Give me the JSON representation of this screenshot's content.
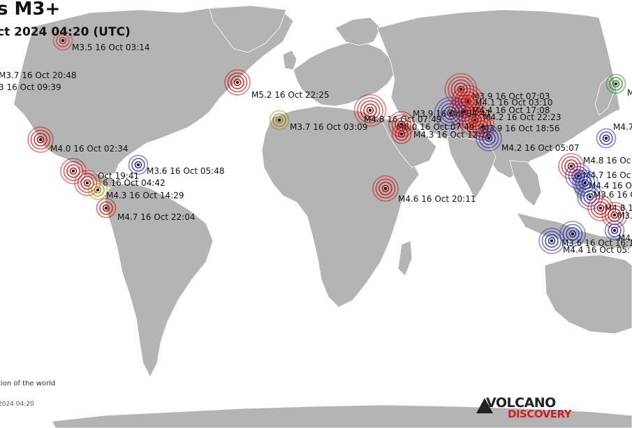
{
  "title": "s M3+",
  "subtitle": "ct 2024 04:20 (UTC)",
  "footer": {
    "note": "tion of the world",
    "time": "2024 04:20"
  },
  "logo": {
    "line1": "VOLCANO",
    "line2": "DISCOVERY"
  },
  "colors": {
    "land": "#b4b4b4",
    "water": "#ffffff",
    "recent": "#cc0000",
    "older": "#2222aa",
    "oldest": "#a08a00",
    "green": "#1a8a1a"
  },
  "quakes": [
    {
      "label": "M3.5 16 Oct 03:14",
      "color": "#cc3333"
    },
    {
      "label": "M3.7 16 Oct 20:48",
      "color": "#cc3333"
    },
    {
      "label": "3 16 Oct 09:39",
      "color": "#cc3333"
    },
    {
      "label": "M5.2 16 Oct 22:25",
      "color": "#cc0000"
    },
    {
      "label": "M3.7 16 Oct 03:09",
      "color": "#a08a00"
    },
    {
      "label": "M4.0 16 Oct 02:34",
      "color": "#cc0000"
    },
    {
      "label": "M3.6 16 Oct 05:48",
      "color": "#2222aa"
    },
    {
      "label": "Oct 19:41",
      "color": "#cc0000"
    },
    {
      "label": "6 16 Oct 04:42",
      "color": "#cc0000"
    },
    {
      "label": "M4.3 16 Oct 14:29",
      "color": "#a08a00"
    },
    {
      "label": "M4.7 16 Oct 22:04",
      "color": "#cc0000"
    },
    {
      "label": "M4.6 16 Oct 20:11",
      "color": "#cc0000"
    },
    {
      "label": "M3.9 16 Oct 07:03",
      "color": "#cc0000"
    },
    {
      "label": "M4.1 16 Oct 03:10",
      "color": "#cc0000"
    },
    {
      "label": "M4.4 16 Oct 17:08",
      "color": "#cc0000"
    },
    {
      "label": "M4.2 16 Oct 22:23",
      "color": "#cc0000"
    },
    {
      "label": "M3.9 16 Oct 04:47",
      "color": "#2222aa"
    },
    {
      "label": "M4.8 16 Oct 07:49",
      "color": "#cc0000"
    },
    {
      "label": "M6.0 16 Oct 07:49",
      "color": "#cc0000"
    },
    {
      "label": "M3.9 16 Oct 18:56",
      "color": "#cc0000"
    },
    {
      "label": "M4.3 16 Oct 12:26",
      "color": "#cc0000"
    },
    {
      "label": "M4.2 16 Oct 05:07",
      "color": "#2222aa"
    },
    {
      "label": "M4.8 16 Oc",
      "color": "#cc0000"
    },
    {
      "label": "M4.7 16 Oc",
      "color": "#2222aa"
    },
    {
      "label": "M4.4 16 Oc",
      "color": "#2222aa"
    },
    {
      "label": "M3.6 16 O",
      "color": "#2222aa"
    },
    {
      "label": "M4.8 16",
      "color": "#cc0000"
    },
    {
      "label": "M3.9 1",
      "color": "#cc0000"
    },
    {
      "label": "M3.6 16 Oct 16:1",
      "color": "#2222aa"
    },
    {
      "label": "M4.4 16 Oct 05:",
      "color": "#2222aa"
    },
    {
      "label": "M4.7",
      "color": "#2222aa"
    },
    {
      "label": "M",
      "color": "#1a8a1a"
    },
    {
      "label": "M4.",
      "color": "#2222aa"
    }
  ]
}
